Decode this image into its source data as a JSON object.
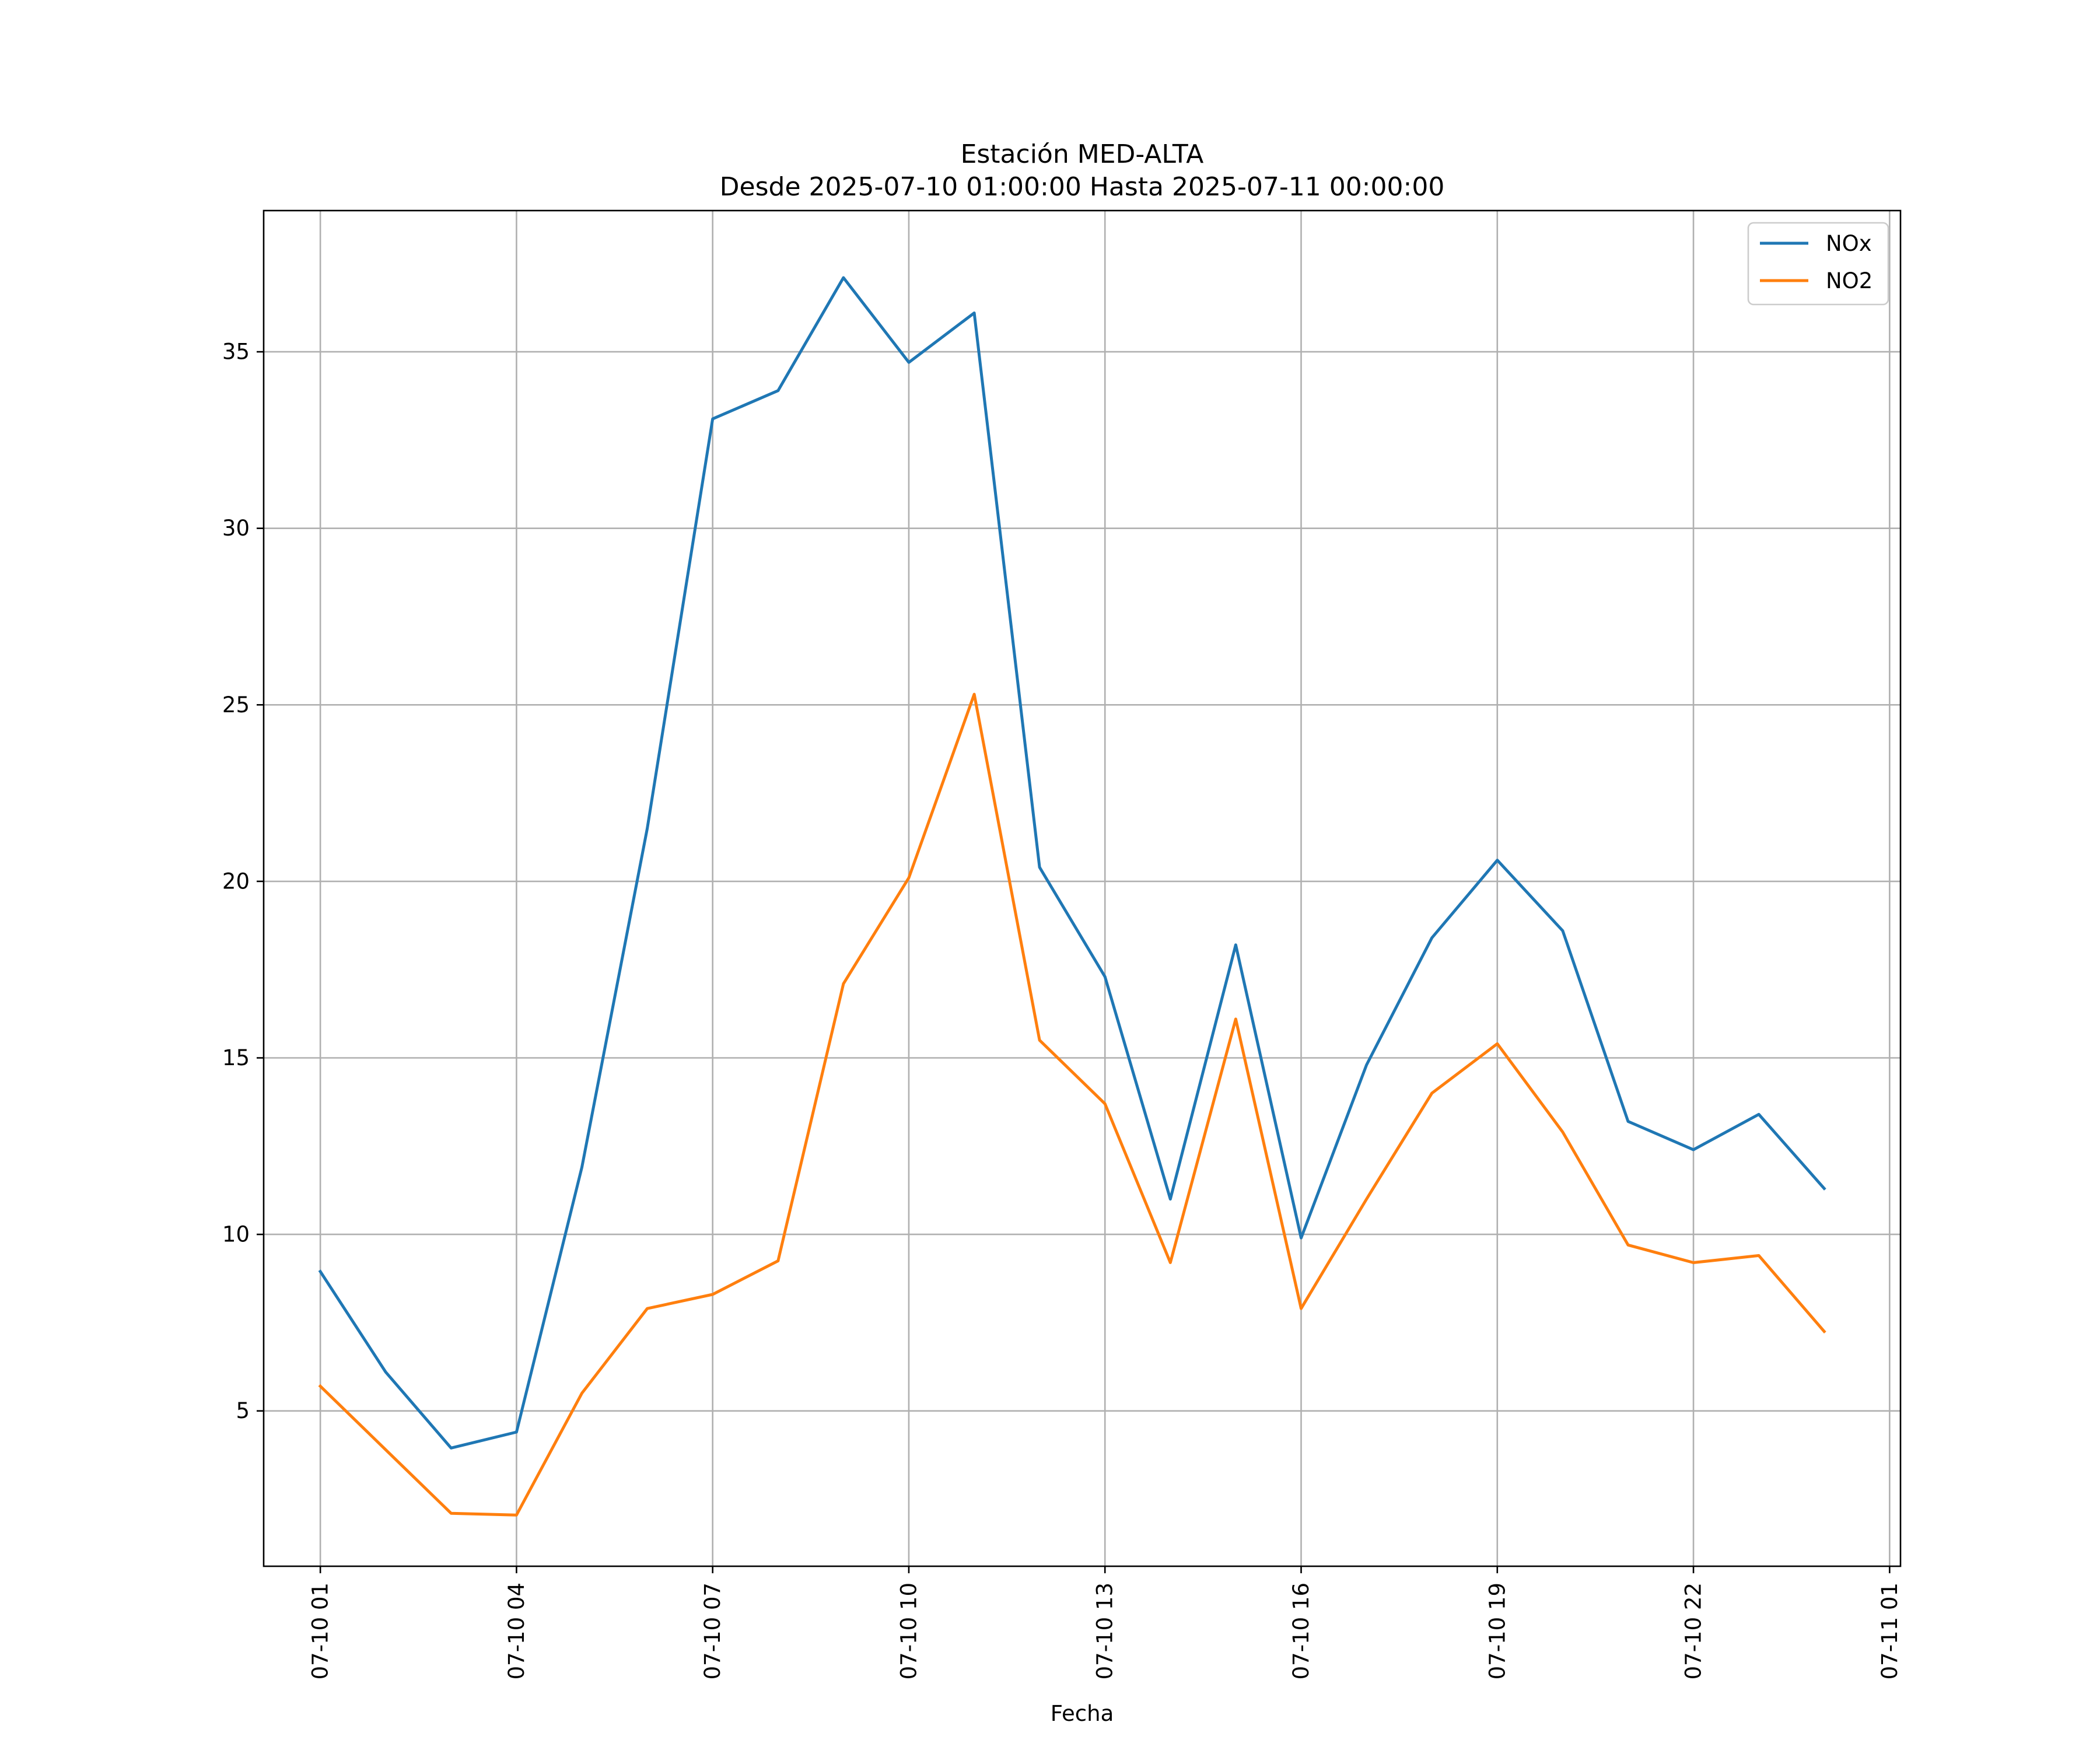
{
  "chart_data": {
    "type": "line",
    "title": "Estación MED-ALTA",
    "subtitle": "Desde 2025-07-10 01:00:00 Hasta 2025-07-11 00:00:00",
    "xlabel": "Fecha",
    "ylabel": "",
    "x": [
      "07-10 01",
      "07-10 02",
      "07-10 03",
      "07-10 04",
      "07-10 05",
      "07-10 06",
      "07-10 07",
      "07-10 08",
      "07-10 09",
      "07-10 10",
      "07-10 11",
      "07-10 12",
      "07-10 13",
      "07-10 14",
      "07-10 15",
      "07-10 16",
      "07-10 17",
      "07-10 18",
      "07-10 19",
      "07-10 20",
      "07-10 21",
      "07-10 22",
      "07-10 23",
      "07-11 00"
    ],
    "xticks": [
      "07-10 01",
      "07-10 04",
      "07-10 07",
      "07-10 10",
      "07-10 13",
      "07-10 16",
      "07-10 19",
      "07-10 22",
      "07-11 01"
    ],
    "xlim": [
      "07-10 00:08",
      "07-11 01:10"
    ],
    "yticks": [
      5,
      10,
      15,
      20,
      25,
      30,
      35
    ],
    "ylim": [
      0.6,
      39.0
    ],
    "grid": true,
    "legend_position": "upper right",
    "series": [
      {
        "name": "NOx",
        "color": "#1f77b4",
        "values": [
          8.95,
          6.1,
          3.95,
          4.4,
          11.9,
          21.5,
          33.1,
          33.9,
          37.1,
          34.7,
          36.1,
          20.4,
          17.3,
          11.0,
          18.2,
          9.9,
          14.8,
          18.4,
          20.6,
          18.6,
          13.2,
          12.4,
          13.4,
          11.3
        ]
      },
      {
        "name": "NO2",
        "color": "#ff7f0e",
        "values": [
          5.7,
          3.9,
          2.1,
          2.05,
          5.5,
          7.9,
          8.3,
          9.25,
          17.1,
          20.1,
          25.3,
          15.5,
          13.7,
          9.2,
          16.1,
          7.9,
          11.0,
          14.0,
          15.4,
          12.9,
          9.7,
          9.2,
          9.4,
          7.25
        ]
      }
    ]
  }
}
